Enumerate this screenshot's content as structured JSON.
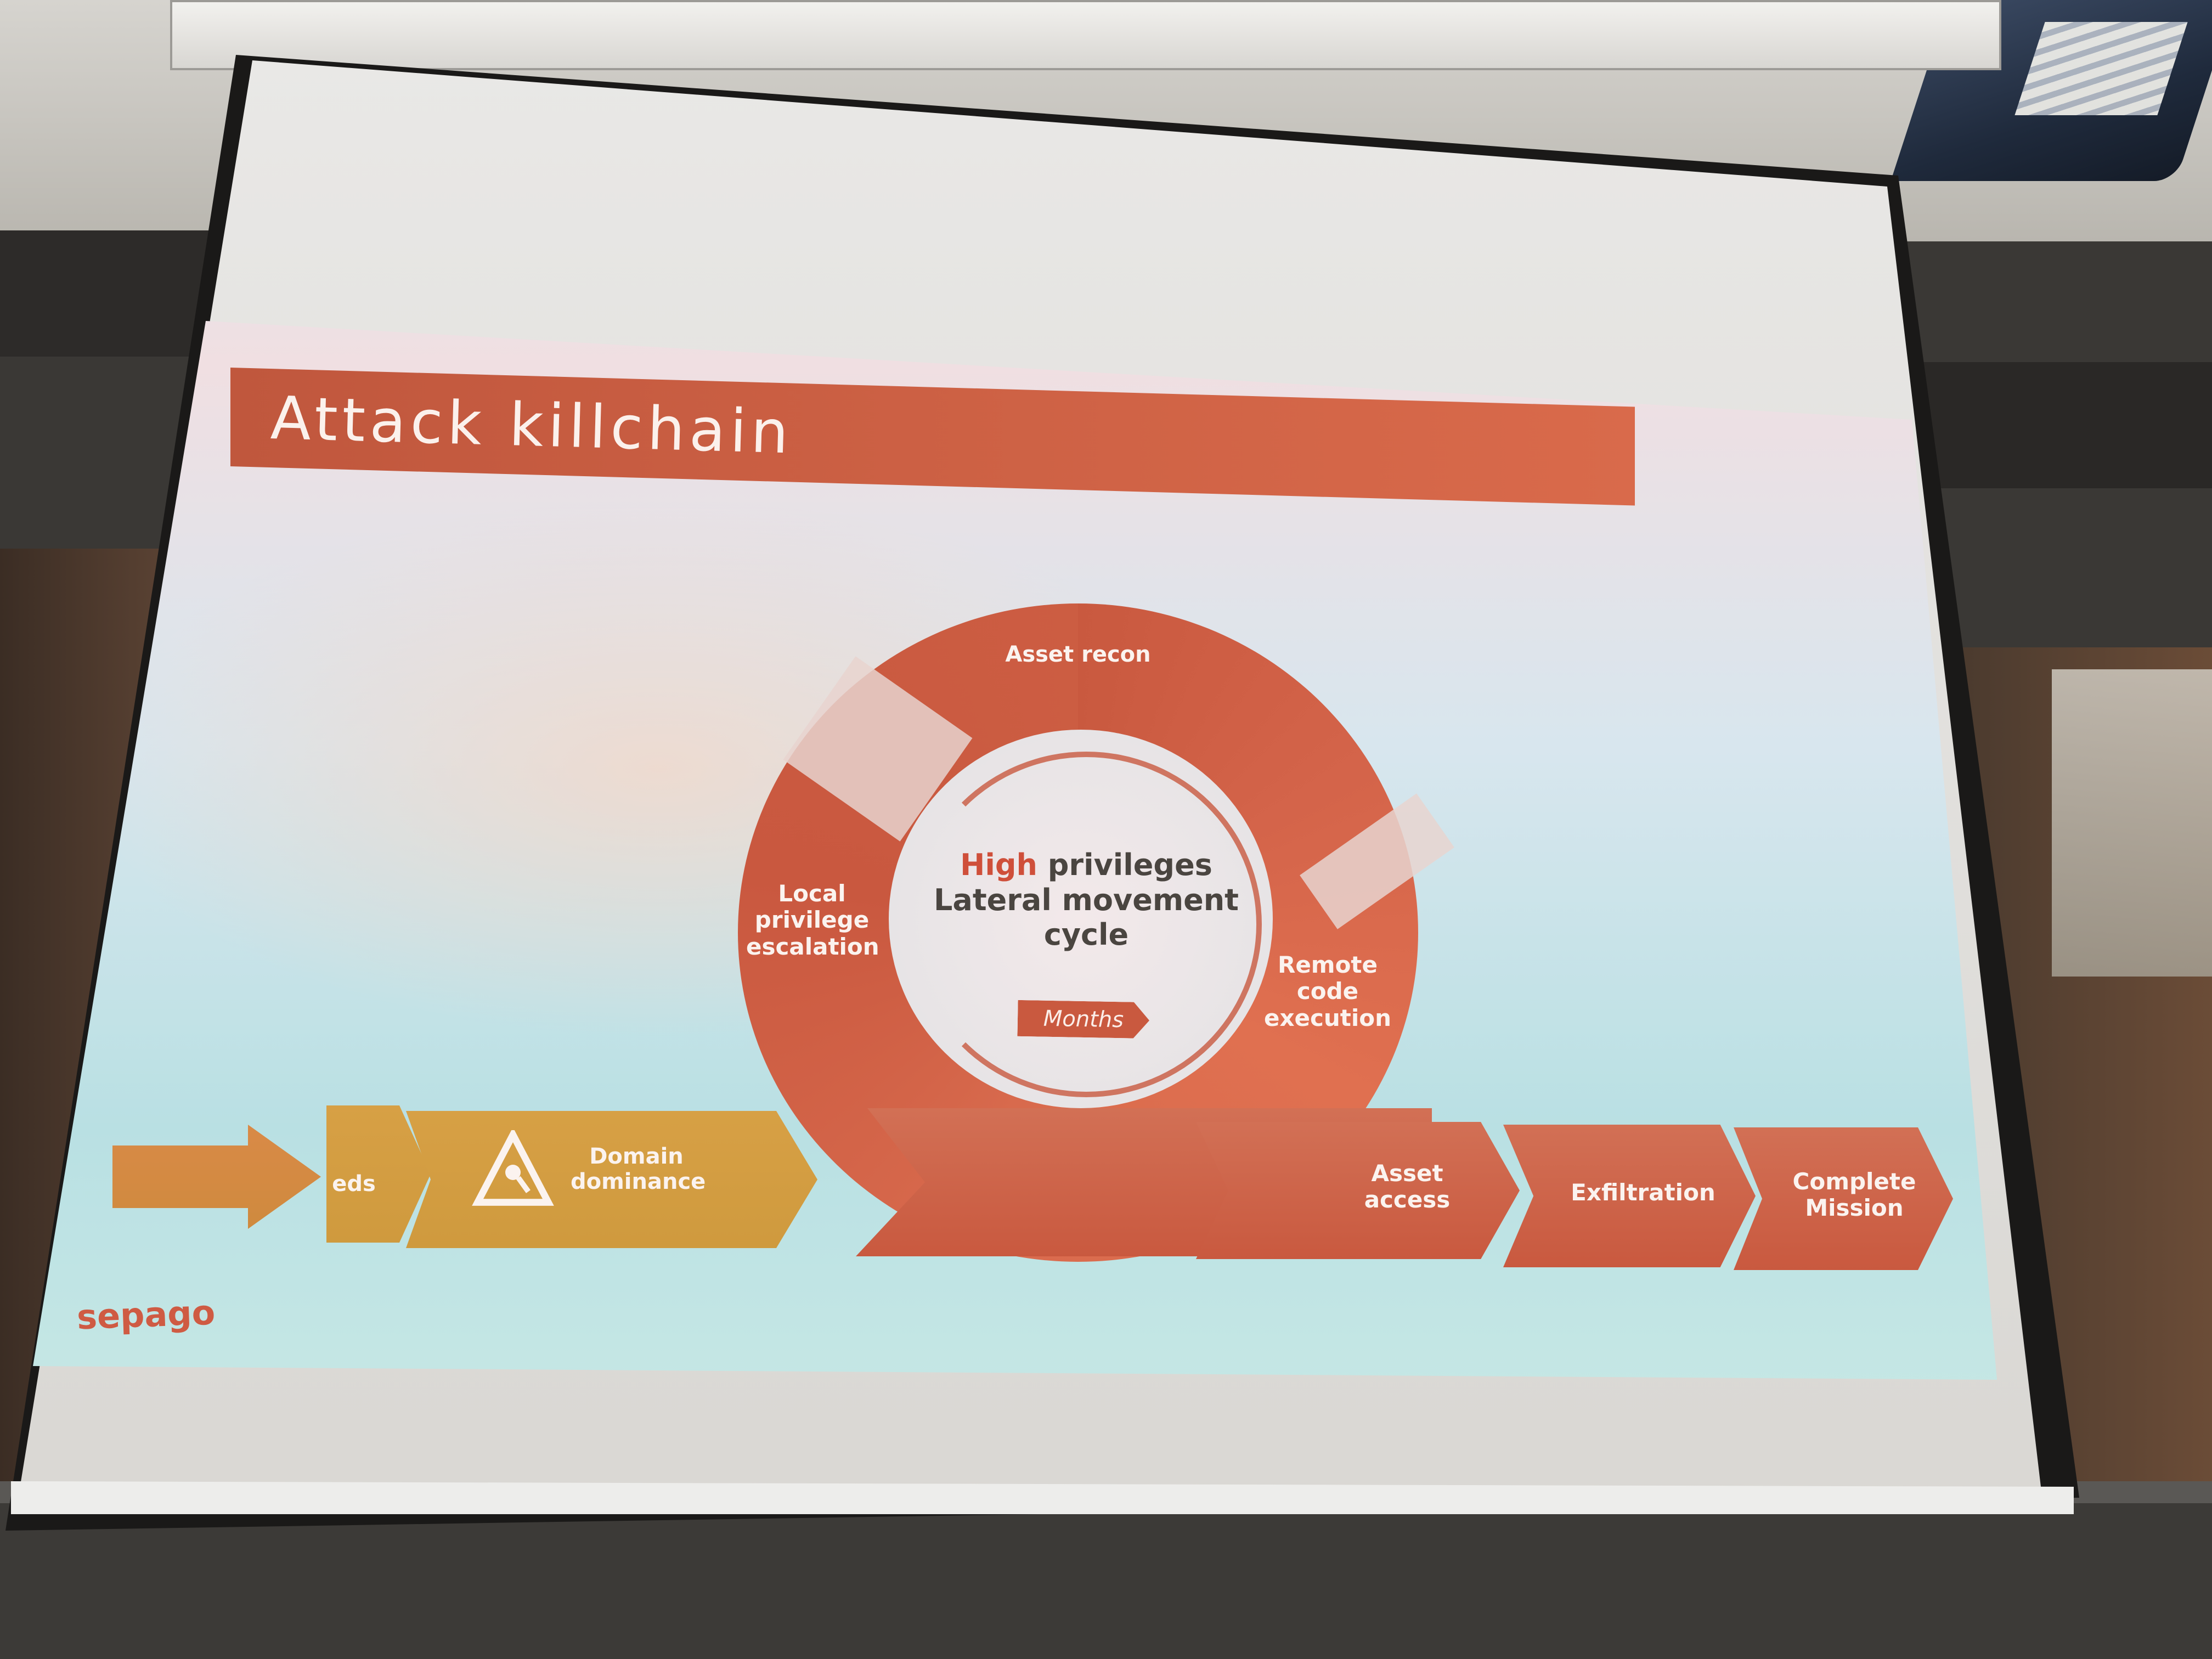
{
  "slide": {
    "title": "Attack killchain",
    "logo": "sepago",
    "cycle": {
      "top": "Asset recon",
      "left_line1": "Local",
      "left_line2": "privilege",
      "left_line3": "escalation",
      "right_line1": "Remote",
      "right_line2": "code",
      "right_line3": "execution",
      "center_highlight": "High",
      "center_rest": "privileges",
      "center_line2": "Lateral movement",
      "center_line3": "cycle",
      "months": "Months"
    },
    "steps": {
      "partial": "eds",
      "domain_line1": "Domain",
      "domain_line2": "dominance",
      "asset_line1": "Asset",
      "asset_line2": "access",
      "exfiltration": "Exfiltration",
      "complete_line1": "Complete",
      "complete_line2": "Mission"
    },
    "colors": {
      "accent": "#c9593f",
      "gold": "#d3a045",
      "title_text": "#fbf1ec"
    }
  }
}
